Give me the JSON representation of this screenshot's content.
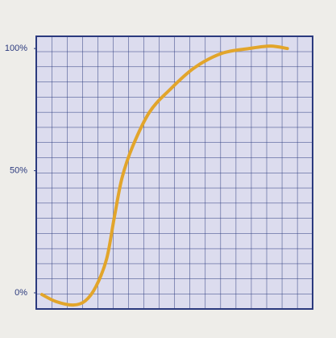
{
  "chart_data": {
    "type": "line",
    "x": [
      0.37,
      1.3,
      2.4,
      3.2,
      3.9,
      4.6,
      5.1,
      5.6,
      6.3,
      7.4,
      8.7,
      10.3,
      12.1,
      13.9,
      15.3,
      16.4
    ],
    "series": [
      {
        "color": "#e2a52b",
        "values": [
          -0.7,
          -3.6,
          -5,
          -3.3,
          2.6,
          14,
          31,
          47,
          60,
          74,
          83,
          92,
          98,
          100,
          101,
          100
        ]
      }
    ],
    "xlim": [
      0,
      18.05
    ],
    "ylim": [
      -6.6,
      105
    ],
    "yticks": [
      {
        "value": 0,
        "label": "0%"
      },
      {
        "value": 50,
        "label": "50%"
      },
      {
        "value": 100,
        "label": "100%"
      }
    ],
    "grid": true
  }
}
